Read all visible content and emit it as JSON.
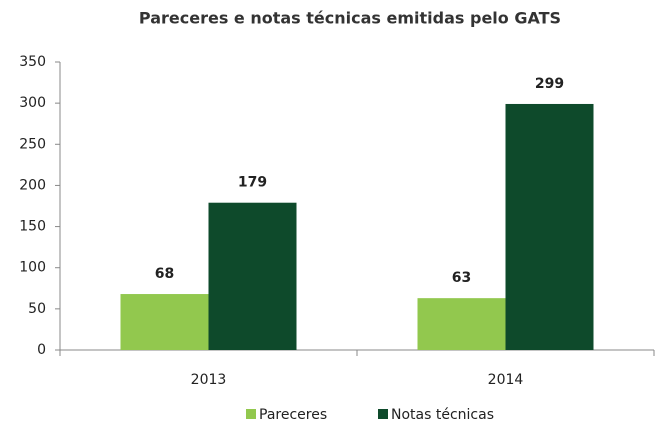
{
  "chart_data": {
    "type": "bar",
    "title": "Pareceres e notas técnicas emitidas pelo GATS",
    "categories": [
      "2013",
      "2014"
    ],
    "series": [
      {
        "name": "Pareceres",
        "color": "#92c84e",
        "values": [
          68,
          63
        ]
      },
      {
        "name": "Notas técnicas",
        "color": "#0e4a2b",
        "values": [
          179,
          299
        ]
      }
    ],
    "ylim": [
      0,
      350
    ],
    "yticks": [
      0,
      50,
      100,
      150,
      200,
      250,
      300,
      350
    ],
    "legend": "bottom"
  }
}
